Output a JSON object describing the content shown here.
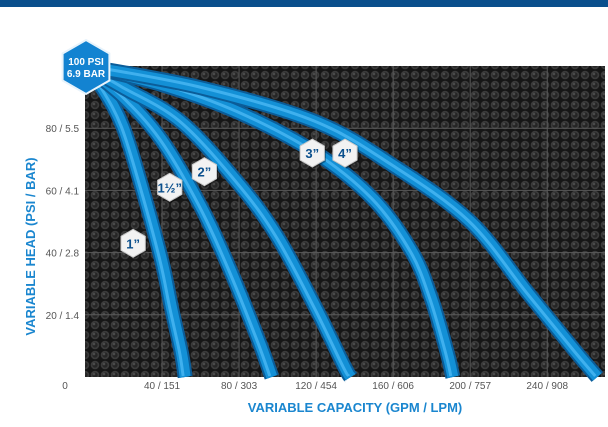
{
  "chart_data": {
    "type": "line",
    "title": "",
    "xlabel": "VARIABLE CAPACITY (GPM / LPM)",
    "ylabel": "VARIABLE HEAD (PSI / BAR)",
    "xlim": [
      0,
      270
    ],
    "ylim": [
      0,
      100
    ],
    "x_ticks": [
      {
        "value": 0,
        "label": "0"
      },
      {
        "value": 40,
        "label": "40 / 151"
      },
      {
        "value": 80,
        "label": "80 / 303"
      },
      {
        "value": 120,
        "label": "120 / 454"
      },
      {
        "value": 160,
        "label": "160 / 606"
      },
      {
        "value": 200,
        "label": "200 / 757"
      },
      {
        "value": 240,
        "label": "240 / 908"
      }
    ],
    "y_ticks": [
      {
        "value": 20,
        "label": "20 / 1.4"
      },
      {
        "value": 40,
        "label": "40 / 2.8"
      },
      {
        "value": 60,
        "label": "60 / 4.1"
      },
      {
        "value": 80,
        "label": "80 / 5.5"
      }
    ],
    "max_pressure": {
      "line1": "100 PSI",
      "line2": "6.9 BAR",
      "value": 100
    },
    "grid": true,
    "series": [
      {
        "name": "1”",
        "label_at": [
          25,
          43
        ],
        "points": [
          [
            0,
            100
          ],
          [
            10,
            92
          ],
          [
            20,
            80
          ],
          [
            30,
            60
          ],
          [
            40,
            37
          ],
          [
            45,
            22
          ],
          [
            50,
            8
          ],
          [
            52,
            0
          ]
        ]
      },
      {
        "name": "1½”",
        "label_at": [
          44,
          61
        ],
        "points": [
          [
            0,
            100
          ],
          [
            20,
            90
          ],
          [
            40,
            76
          ],
          [
            60,
            55
          ],
          [
            75,
            35
          ],
          [
            90,
            12
          ],
          [
            97,
            0
          ]
        ]
      },
      {
        "name": "2”",
        "label_at": [
          62,
          66
        ],
        "points": [
          [
            0,
            100
          ],
          [
            20,
            93
          ],
          [
            50,
            82
          ],
          [
            80,
            62
          ],
          [
            100,
            45
          ],
          [
            120,
            22
          ],
          [
            135,
            3
          ],
          [
            138,
            0
          ]
        ]
      },
      {
        "name": "3”",
        "label_at": [
          118,
          72
        ],
        "points": [
          [
            0,
            100
          ],
          [
            40,
            94
          ],
          [
            80,
            85
          ],
          [
            120,
            72
          ],
          [
            150,
            57
          ],
          [
            170,
            40
          ],
          [
            180,
            25
          ],
          [
            188,
            8
          ],
          [
            191,
            0
          ]
        ]
      },
      {
        "name": "4”",
        "label_at": [
          135,
          72
        ],
        "points": [
          [
            0,
            100
          ],
          [
            60,
            93
          ],
          [
            120,
            82
          ],
          [
            160,
            68
          ],
          [
            200,
            50
          ],
          [
            230,
            27
          ],
          [
            255,
            8
          ],
          [
            266,
            0
          ]
        ]
      }
    ]
  },
  "style": {
    "bar_color": "#0a4f8c",
    "curve_color": "#1390d6",
    "curve_shadow": "#0b5d99",
    "axis_title_color": "#1a86cf",
    "grid_bg": "#1c1c1c",
    "badge_fill": "#f2f2f2",
    "max_badge_fill": "#1383d1"
  }
}
